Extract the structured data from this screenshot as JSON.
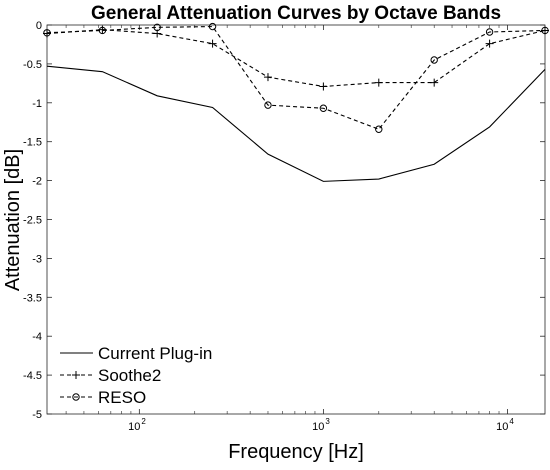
{
  "chart_data": {
    "type": "line",
    "title": "General Attenuation Curves by Octave Bands",
    "xlabel": "Frequency [Hz]",
    "ylabel": "Attenuation [dB]",
    "xscale": "log",
    "xlim": [
      31.5,
      16000
    ],
    "ylim": [
      -5,
      0
    ],
    "grid": false,
    "legend_position": "bottom-left",
    "x": [
      31.5,
      63,
      125,
      250,
      500,
      1000,
      2000,
      4000,
      8000,
      16000
    ],
    "x_ticks": [
      {
        "base": "10",
        "exp": "2",
        "value": 100
      },
      {
        "base": "10",
        "exp": "3",
        "value": 1000
      },
      {
        "base": "10",
        "exp": "4",
        "value": 10000
      }
    ],
    "y_ticks": [
      {
        "label": "0",
        "value": 0
      },
      {
        "label": "-0.5",
        "value": -0.5
      },
      {
        "label": "-1",
        "value": -1
      },
      {
        "label": "-1.5",
        "value": -1.5
      },
      {
        "label": "-2",
        "value": -2
      },
      {
        "label": "-2.5",
        "value": -2.5
      },
      {
        "label": "-3",
        "value": -3
      },
      {
        "label": "-3.5",
        "value": -3.5
      },
      {
        "label": "-4",
        "value": -4
      },
      {
        "label": "-4.5",
        "value": -4.5
      },
      {
        "label": "-5",
        "value": -5
      }
    ],
    "series": [
      {
        "name": "Current Plug-in",
        "line": "solid",
        "marker": "none",
        "color": "#000000",
        "values": [
          -0.53,
          -0.6,
          -0.91,
          -1.06,
          -1.66,
          -2.01,
          -1.98,
          -1.79,
          -1.31,
          -0.57
        ]
      },
      {
        "name": "Soothe2",
        "line": "dashed",
        "marker": "plus",
        "color": "#000000",
        "values": [
          -0.11,
          -0.06,
          -0.11,
          -0.24,
          -0.67,
          -0.79,
          -0.74,
          -0.74,
          -0.24,
          -0.07
        ]
      },
      {
        "name": "RESO",
        "line": "dashed",
        "marker": "circle",
        "color": "#000000",
        "values": [
          -0.1,
          -0.07,
          -0.03,
          -0.02,
          -1.03,
          -1.07,
          -1.34,
          -0.45,
          -0.09,
          -0.07
        ]
      }
    ]
  }
}
